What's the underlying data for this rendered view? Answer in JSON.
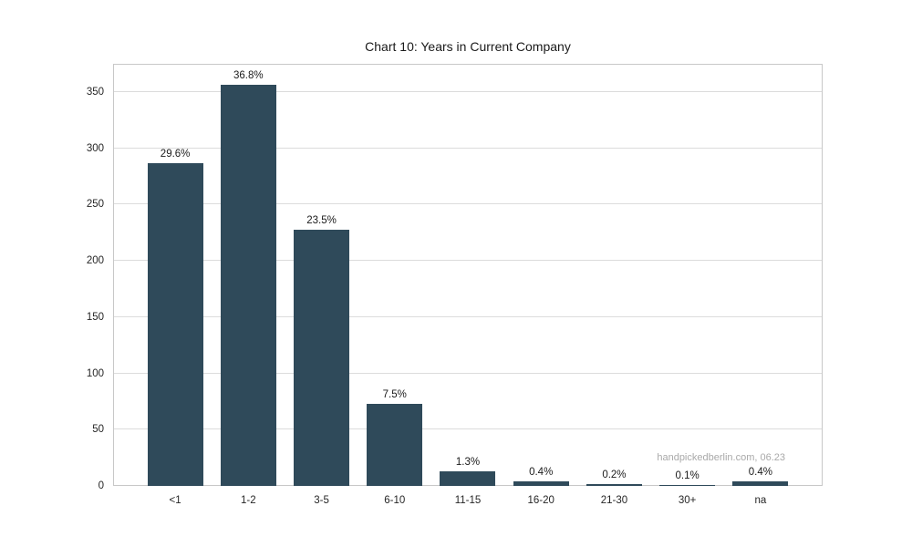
{
  "chart_data": {
    "type": "bar",
    "title": "Chart 10: Years in Current Company",
    "categories": [
      "<1",
      "1-2",
      "3-5",
      "6-10",
      "11-15",
      "16-20",
      "21-30",
      "30+",
      "na"
    ],
    "values": [
      287,
      356,
      228,
      73,
      13,
      4,
      2,
      1,
      4
    ],
    "bar_labels": [
      "29.6%",
      "36.8%",
      "23.5%",
      "7.5%",
      "1.3%",
      "0.4%",
      "0.2%",
      "0.1%",
      "0.4%"
    ],
    "y_ticks": [
      0,
      50,
      100,
      150,
      200,
      250,
      300,
      350
    ],
    "ylim": [
      0,
      375
    ],
    "xlabel": "",
    "ylabel": "",
    "grid": "horizontal",
    "legend": "none",
    "bar_color": "#2f4a5a",
    "grid_color": "#dcdcdc",
    "border_color": "#c8c8c8",
    "watermark": "handpickedberlin.com, 06.23"
  }
}
